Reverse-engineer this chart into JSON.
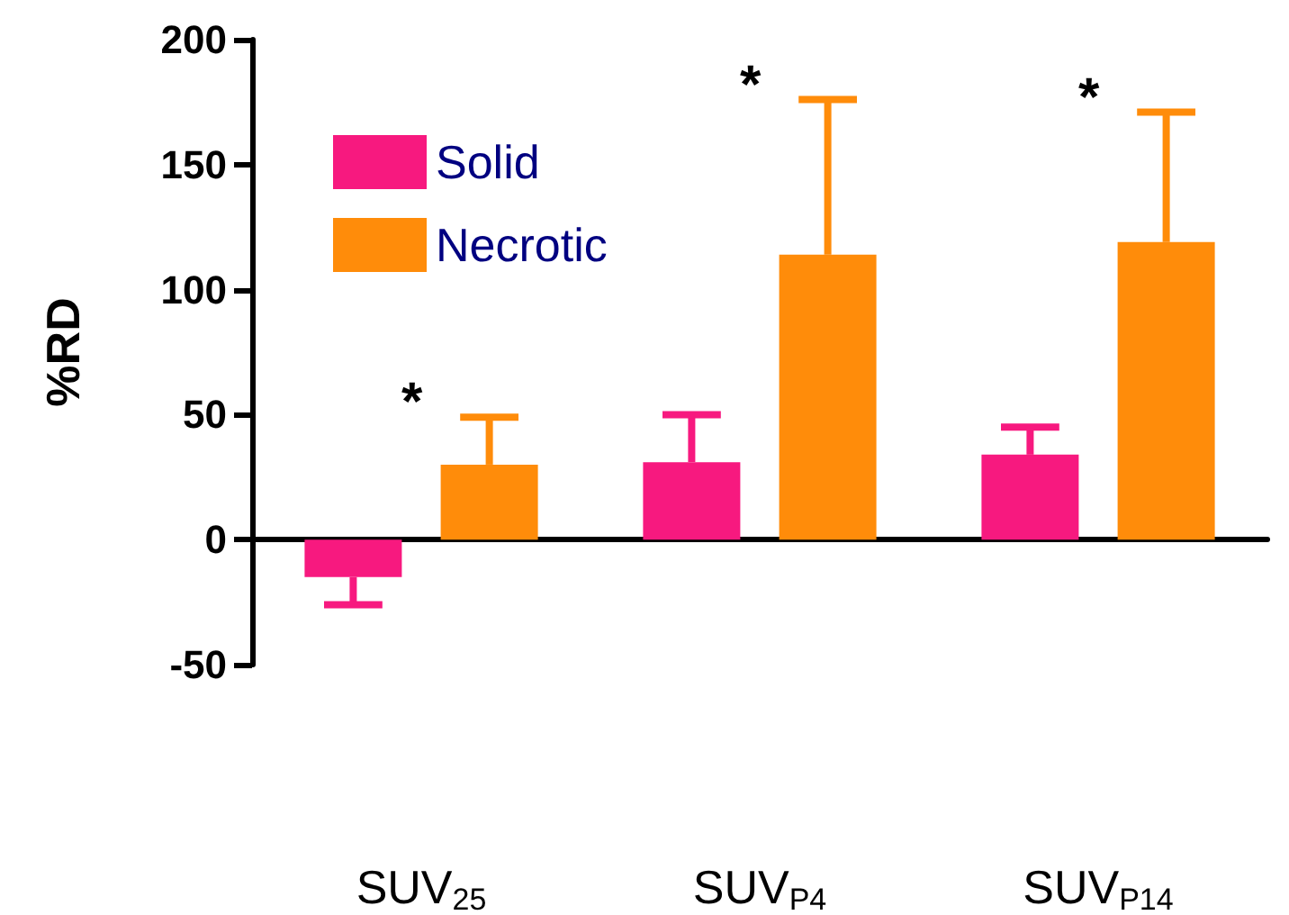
{
  "chart_data": {
    "type": "bar",
    "ylabel": "%RD",
    "categories": [
      "SUV$_{25}$",
      "SUV$_{P4}$",
      "SUV$_{P14}$"
    ],
    "series": [
      {
        "name": "Solid",
        "color": "#f7197f",
        "values": [
          -15,
          31,
          34
        ],
        "errors": [
          [
            -26,
            -15
          ],
          [
            31,
            50
          ],
          [
            34,
            45
          ]
        ]
      },
      {
        "name": "Necrotic",
        "color": "#ff8c0a",
        "values": [
          30,
          114,
          119
        ],
        "errors": [
          [
            30,
            49
          ],
          [
            114,
            176
          ],
          [
            119,
            171
          ]
        ]
      }
    ],
    "ylim": [
      -50,
      200
    ],
    "yticks": [
      -50,
      0,
      50,
      100,
      150,
      200
    ],
    "legend": "top left",
    "annotations": [
      "*",
      "*",
      "*"
    ]
  }
}
